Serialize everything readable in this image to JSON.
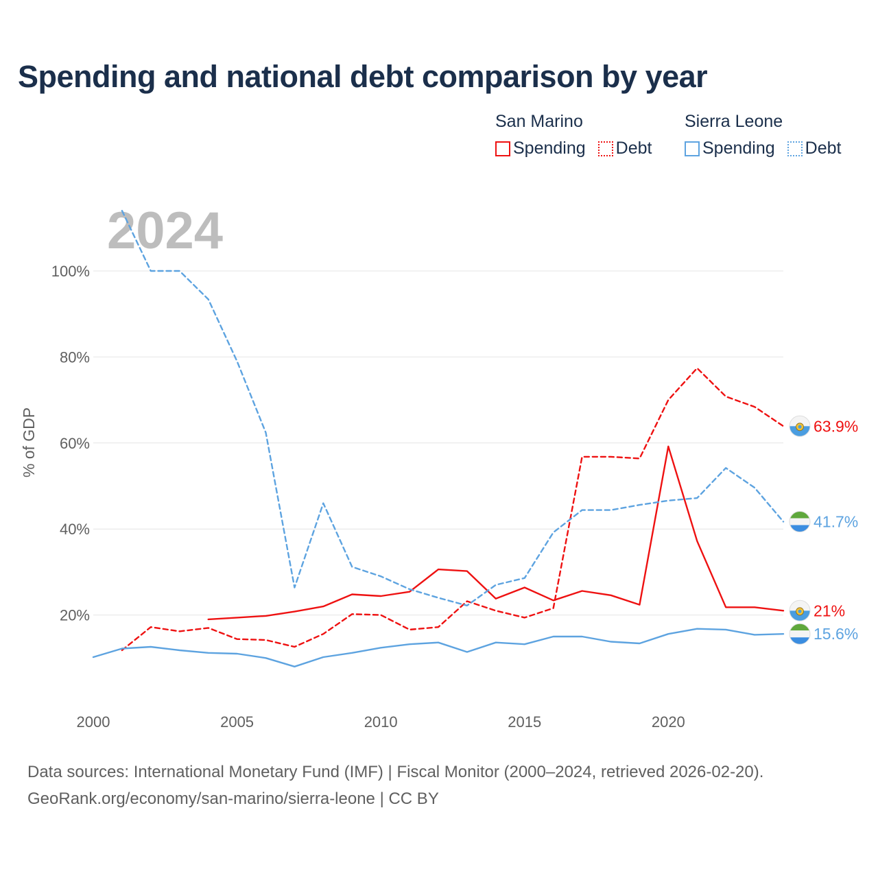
{
  "title": "Spending and national debt comparison by year",
  "colors": {
    "san_marino": "#ee1111",
    "sierra_leone": "#5da3e0",
    "title": "#1b2f4b",
    "axis_text": "#5f5f5f",
    "grid": "#e4e4e4"
  },
  "legend": {
    "groups": [
      {
        "country": "San Marino",
        "spending": "Spending",
        "debt": "Debt"
      },
      {
        "country": "Sierra Leone",
        "spending": "Spending",
        "debt": "Debt"
      }
    ]
  },
  "year_watermark": "2024",
  "chart_data": {
    "type": "line",
    "title": "Spending and national debt comparison by year",
    "xlabel": "",
    "ylabel": "% of GDP",
    "xlim": [
      2000,
      2024
    ],
    "ylim": [
      0,
      115
    ],
    "x_ticks": [
      2000,
      2005,
      2010,
      2015,
      2020
    ],
    "y_ticks": [
      20,
      40,
      60,
      80,
      100
    ],
    "y_tick_labels": [
      "20%",
      "40%",
      "60%",
      "80%",
      "100%"
    ],
    "x": [
      2000,
      2001,
      2002,
      2003,
      2004,
      2005,
      2006,
      2007,
      2008,
      2009,
      2010,
      2011,
      2012,
      2013,
      2014,
      2015,
      2016,
      2017,
      2018,
      2019,
      2020,
      2021,
      2022,
      2023,
      2024
    ],
    "series": [
      {
        "name": "San Marino Spending",
        "country": "San Marino",
        "measure": "Spending",
        "style": "solid",
        "values": [
          null,
          null,
          null,
          null,
          19.0,
          19.4,
          19.8,
          20.8,
          22.0,
          24.8,
          24.4,
          25.4,
          30.6,
          30.2,
          23.8,
          26.4,
          23.4,
          25.6,
          24.6,
          22.4,
          59.2,
          37.2,
          21.8,
          21.8,
          21.0
        ],
        "end_label": "21%"
      },
      {
        "name": "San Marino Debt",
        "country": "San Marino",
        "measure": "Debt",
        "style": "dashed",
        "values": [
          null,
          11.8,
          17.2,
          16.2,
          17.0,
          14.4,
          14.2,
          12.6,
          15.6,
          20.2,
          20.0,
          16.6,
          17.2,
          23.2,
          21.0,
          19.4,
          21.6,
          56.8,
          56.8,
          56.4,
          70.0,
          77.4,
          70.8,
          68.4,
          63.9
        ],
        "end_label": "63.9%"
      },
      {
        "name": "Sierra Leone Spending",
        "country": "Sierra Leone",
        "measure": "Spending",
        "style": "solid",
        "values": [
          10.2,
          12.2,
          12.6,
          11.8,
          11.2,
          11.0,
          10.0,
          8.0,
          10.2,
          11.2,
          12.4,
          13.2,
          13.6,
          11.4,
          13.6,
          13.2,
          15.0,
          15.0,
          13.8,
          13.4,
          15.6,
          16.8,
          16.6,
          15.4,
          15.6
        ],
        "end_label": "15.6%"
      },
      {
        "name": "Sierra Leone Debt",
        "country": "Sierra Leone",
        "measure": "Debt",
        "style": "dashed",
        "values": [
          null,
          114.0,
          100.0,
          100.0,
          93.4,
          79.0,
          62.4,
          26.4,
          46.0,
          31.2,
          29.0,
          26.0,
          24.0,
          22.2,
          27.0,
          28.6,
          39.2,
          44.4,
          44.4,
          45.6,
          46.6,
          47.2,
          54.2,
          49.6,
          41.7
        ],
        "end_label": "41.7%"
      }
    ]
  },
  "footer": {
    "line1": "Data sources: International Monetary Fund (IMF) | Fiscal Monitor (2000–2024, retrieved 2026-02-20).",
    "line2": "GeoRank.org/economy/san-marino/sierra-leone | CC BY"
  }
}
